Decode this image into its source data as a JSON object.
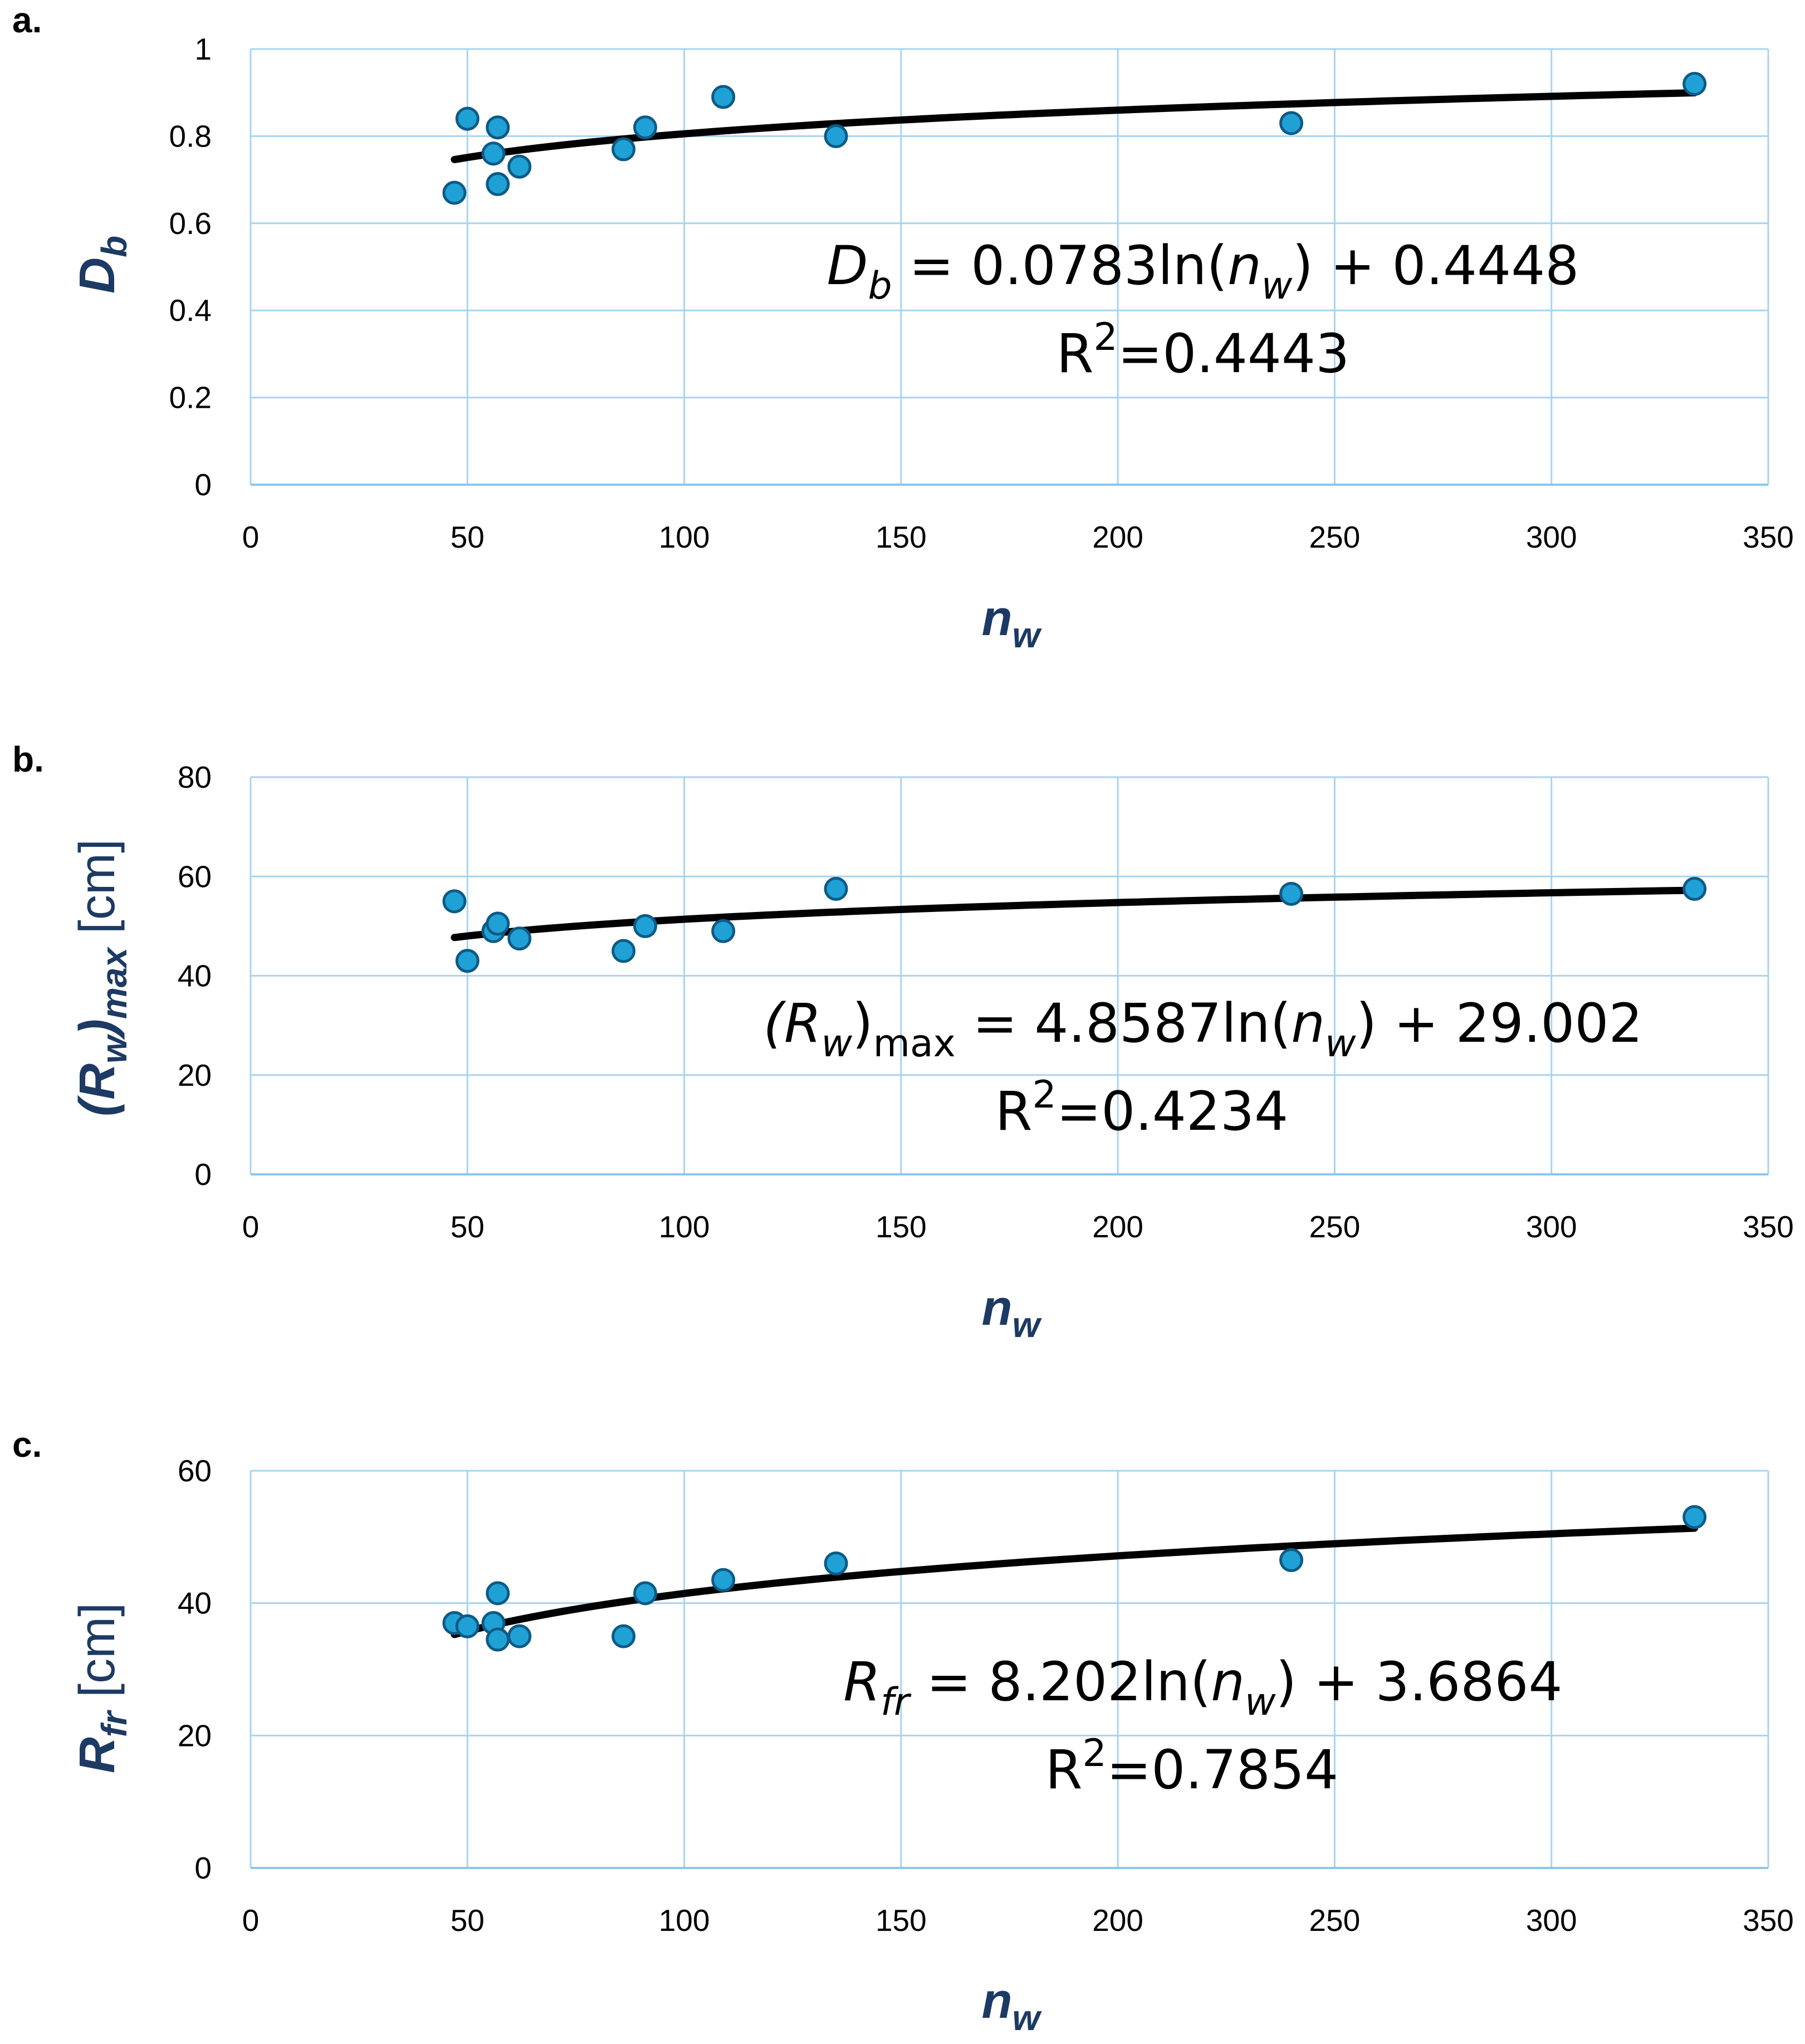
{
  "chart_data": [
    {
      "type": "scatter",
      "panel": "a.",
      "xlim": [
        0,
        350
      ],
      "ylim": [
        0,
        1
      ],
      "xticks": [
        "0",
        "50",
        "100",
        "150",
        "200",
        "250",
        "300",
        "350"
      ],
      "yticks": [
        "0",
        "0.2",
        "0.4",
        "0.6",
        "0.8",
        "1"
      ],
      "ylabel": {
        "main": "D",
        "sub": "b",
        "unit": ""
      },
      "xlabel": {
        "main": "n",
        "sub": "w"
      },
      "points": [
        {
          "x": 47,
          "y": 0.67
        },
        {
          "x": 50,
          "y": 0.84
        },
        {
          "x": 56,
          "y": 0.76
        },
        {
          "x": 57,
          "y": 0.69
        },
        {
          "x": 57,
          "y": 0.82
        },
        {
          "x": 62,
          "y": 0.73
        },
        {
          "x": 86,
          "y": 0.77
        },
        {
          "x": 91,
          "y": 0.82
        },
        {
          "x": 109,
          "y": 0.89
        },
        {
          "x": 135,
          "y": 0.8
        },
        {
          "x": 240,
          "y": 0.83
        },
        {
          "x": 333,
          "y": 0.92
        }
      ],
      "trend": {
        "type": "log",
        "a": 0.0783,
        "b": 0.4448,
        "xmin": 47,
        "xmax": 333
      },
      "equation": {
        "lhs": "D",
        "lhs_sub": "b",
        "lhs_sub2": "",
        "text": " = 0.0783ln(",
        "var": "n",
        "var_sub": "w",
        "tail": ") + 0.4448",
        "r2_prefix": "R",
        "r2_exp": "2",
        "r2_value": "=0.4443"
      }
    },
    {
      "type": "scatter",
      "panel": "b.",
      "xlim": [
        0,
        350
      ],
      "ylim": [
        0,
        80
      ],
      "xticks": [
        "0",
        "50",
        "100",
        "150",
        "200",
        "250",
        "300",
        "350"
      ],
      "yticks": [
        "0",
        "20",
        "40",
        "60",
        "80"
      ],
      "ylabel": {
        "main": "(R",
        "sub": "w",
        "main2": ")",
        "sub2": "max",
        "unit": " [cm]"
      },
      "xlabel": {
        "main": "n",
        "sub": "w"
      },
      "points": [
        {
          "x": 47,
          "y": 55
        },
        {
          "x": 50,
          "y": 43
        },
        {
          "x": 56,
          "y": 49
        },
        {
          "x": 57,
          "y": 50.5
        },
        {
          "x": 62,
          "y": 47.5
        },
        {
          "x": 86,
          "y": 45
        },
        {
          "x": 91,
          "y": 50
        },
        {
          "x": 109,
          "y": 49
        },
        {
          "x": 135,
          "y": 57.5
        },
        {
          "x": 240,
          "y": 56.5
        },
        {
          "x": 333,
          "y": 57.5
        }
      ],
      "trend": {
        "type": "log",
        "a": 4.8587,
        "b": 29.002,
        "xmin": 47,
        "xmax": 333
      },
      "equation": {
        "lhs": "(R",
        "lhs_sub": "w",
        "lhs_mid": ")",
        "lhs_sub2": "max",
        "text": " = 4.8587ln(",
        "var": "n",
        "var_sub": "w",
        "tail": ") + 29.002",
        "r2_prefix": "R",
        "r2_exp": "2",
        "r2_value": "=0.4234"
      }
    },
    {
      "type": "scatter",
      "panel": "c.",
      "xlim": [
        0,
        350
      ],
      "ylim": [
        0,
        60
      ],
      "xticks": [
        "0",
        "50",
        "100",
        "150",
        "200",
        "250",
        "300",
        "350"
      ],
      "yticks": [
        "0",
        "20",
        "40",
        "60"
      ],
      "ylabel": {
        "main": "R",
        "sub": "fr",
        "unit": " [cm]"
      },
      "xlabel": {
        "main": "n",
        "sub": "w"
      },
      "points": [
        {
          "x": 47,
          "y": 37
        },
        {
          "x": 50,
          "y": 36.5
        },
        {
          "x": 56,
          "y": 37
        },
        {
          "x": 57,
          "y": 34.5
        },
        {
          "x": 57,
          "y": 41.5
        },
        {
          "x": 62,
          "y": 35
        },
        {
          "x": 86,
          "y": 35
        },
        {
          "x": 91,
          "y": 41.5
        },
        {
          "x": 109,
          "y": 43.5
        },
        {
          "x": 135,
          "y": 46
        },
        {
          "x": 240,
          "y": 46.5
        },
        {
          "x": 333,
          "y": 53
        }
      ],
      "trend": {
        "type": "log",
        "a": 8.202,
        "b": 3.6864,
        "xmin": 47,
        "xmax": 333
      },
      "equation": {
        "lhs": "R",
        "lhs_sub": "fr",
        "lhs_sub2": "",
        "text": " = 8.202ln(",
        "var": "n",
        "var_sub": "w",
        "tail": ") + 3.6864",
        "r2_prefix": "R",
        "r2_exp": "2",
        "r2_value": "=0.7854"
      }
    }
  ]
}
